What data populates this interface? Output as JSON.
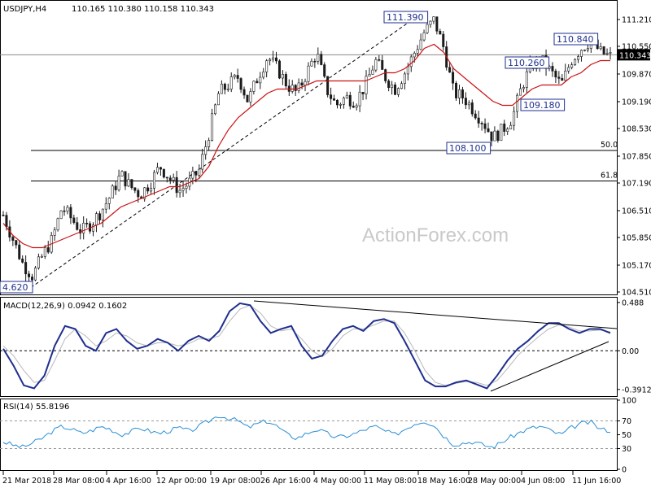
{
  "chart_data": [
    {
      "type": "candlestick",
      "header": {
        "symbol": "USDJPY,H4",
        "ohlc": "110.165 110.380 110.158 110.343"
      },
      "ylim": [
        104.45,
        111.65
      ],
      "y_ticks": [
        "111.210",
        "110.550",
        "109.870",
        "109.190",
        "108.530",
        "107.850",
        "107.190",
        "106.510",
        "105.850",
        "105.170",
        "104.510"
      ],
      "current_price": "110.343",
      "x_ticks": [
        "21 Mar 2018",
        "28 Mar 08:00",
        "4 Apr 16:00",
        "12 Apr 00:00",
        "19 Apr 08:00",
        "26 Apr 16:00",
        "4 May 00:00",
        "11 May 08:00",
        "18 May 16:00",
        "28 May 00:00",
        "4 Jun 08:00",
        "11 Jun 16:00"
      ],
      "price_labels": [
        {
          "text": "111.390"
        },
        {
          "text": "110.840"
        },
        {
          "text": "110.260"
        },
        {
          "text": "109.180"
        },
        {
          "text": "108.100"
        },
        {
          "text": "4.620"
        }
      ],
      "fib_levels": [
        {
          "label": "50.0",
          "value": 107.99
        },
        {
          "label": "61.8",
          "value": 107.24
        }
      ],
      "horizontal_line": 110.343,
      "trendline": [
        104.62,
        111.39
      ],
      "close_path": [
        106.4,
        105.8,
        105.2,
        104.9,
        105.4,
        105.8,
        106.6,
        106.3,
        106.0,
        106.2,
        106.5,
        106.9,
        107.4,
        107.1,
        106.9,
        107.2,
        107.6,
        107.3,
        107.0,
        107.2,
        107.5,
        108.4,
        109.4,
        109.6,
        109.8,
        109.2,
        109.8,
        110.3,
        110.0,
        109.6,
        109.4,
        109.9,
        110.4,
        109.5,
        109.1,
        109.3,
        109.2,
        109.6,
        110.2,
        109.8,
        109.5,
        109.9,
        110.4,
        110.9,
        111.2,
        110.5,
        109.4,
        109.3,
        109.0,
        108.7,
        108.3,
        108.5,
        108.8,
        109.6,
        110.1,
        110.2,
        109.9,
        109.6,
        110.2,
        110.5,
        110.7,
        110.4,
        110.3
      ],
      "ma_path": [
        106.2,
        105.9,
        105.7,
        105.6,
        105.6,
        105.7,
        105.8,
        105.9,
        106.0,
        106.1,
        106.2,
        106.4,
        106.6,
        106.7,
        106.8,
        106.9,
        107.0,
        107.1,
        107.1,
        107.2,
        107.3,
        107.6,
        108.1,
        108.5,
        108.8,
        109.0,
        109.2,
        109.4,
        109.5,
        109.5,
        109.5,
        109.6,
        109.7,
        109.7,
        109.7,
        109.7,
        109.7,
        109.7,
        109.8,
        109.9,
        109.9,
        110.0,
        110.2,
        110.5,
        110.6,
        110.4,
        110.0,
        109.8,
        109.6,
        109.4,
        109.2,
        109.1,
        109.1,
        109.3,
        109.5,
        109.6,
        109.6,
        109.6,
        109.8,
        109.9,
        110.1,
        110.2,
        110.2
      ],
      "watermark": "ActionForex.com"
    },
    {
      "type": "line",
      "header": "MACD(12,26,9) 0.0942 0.1602",
      "ylim": [
        -0.45,
        0.52
      ],
      "y_ticks": [
        "0.488",
        "0.00",
        "-0.3912"
      ],
      "macd": [
        0.02,
        -0.15,
        -0.35,
        -0.38,
        -0.25,
        0.05,
        0.25,
        0.22,
        0.05,
        0.0,
        0.18,
        0.22,
        0.1,
        0.02,
        0.05,
        0.12,
        0.08,
        0.0,
        0.1,
        0.15,
        0.1,
        0.2,
        0.4,
        0.48,
        0.46,
        0.3,
        0.18,
        0.22,
        0.25,
        0.05,
        -0.08,
        -0.05,
        0.1,
        0.22,
        0.25,
        0.2,
        0.3,
        0.32,
        0.28,
        0.1,
        -0.1,
        -0.3,
        -0.36,
        -0.36,
        -0.32,
        -0.3,
        -0.34,
        -0.38,
        -0.25,
        -0.1,
        0.02,
        0.1,
        0.2,
        0.28,
        0.28,
        0.22,
        0.18,
        0.22,
        0.22,
        0.18
      ],
      "signal": [
        0.05,
        -0.05,
        -0.2,
        -0.32,
        -0.3,
        -0.1,
        0.12,
        0.22,
        0.15,
        0.05,
        0.1,
        0.18,
        0.15,
        0.08,
        0.05,
        0.08,
        0.08,
        0.05,
        0.07,
        0.12,
        0.12,
        0.15,
        0.3,
        0.42,
        0.46,
        0.38,
        0.25,
        0.2,
        0.22,
        0.12,
        0.0,
        -0.06,
        0.02,
        0.15,
        0.22,
        0.22,
        0.26,
        0.3,
        0.3,
        0.18,
        0.0,
        -0.2,
        -0.32,
        -0.35,
        -0.33,
        -0.31,
        -0.32,
        -0.35,
        -0.3,
        -0.18,
        -0.05,
        0.05,
        0.14,
        0.22,
        0.26,
        0.24,
        0.2,
        0.2,
        0.21,
        0.19
      ]
    },
    {
      "type": "line",
      "header": "RSI(14) 55.8196",
      "ylim": [
        0,
        100
      ],
      "y_ticks": [
        "100",
        "70",
        "50",
        "30",
        "0"
      ],
      "rsi": [
        40,
        35,
        32,
        38,
        45,
        55,
        62,
        58,
        52,
        56,
        62,
        58,
        50,
        54,
        60,
        55,
        52,
        56,
        60,
        55,
        62,
        70,
        78,
        74,
        70,
        60,
        66,
        70,
        62,
        50,
        45,
        52,
        58,
        52,
        46,
        48,
        52,
        58,
        62,
        55,
        50,
        58,
        66,
        70,
        64,
        48,
        36,
        38,
        40,
        35,
        32,
        40,
        48,
        55,
        60,
        62,
        55,
        50,
        60,
        66,
        68,
        58,
        56
      ]
    }
  ]
}
